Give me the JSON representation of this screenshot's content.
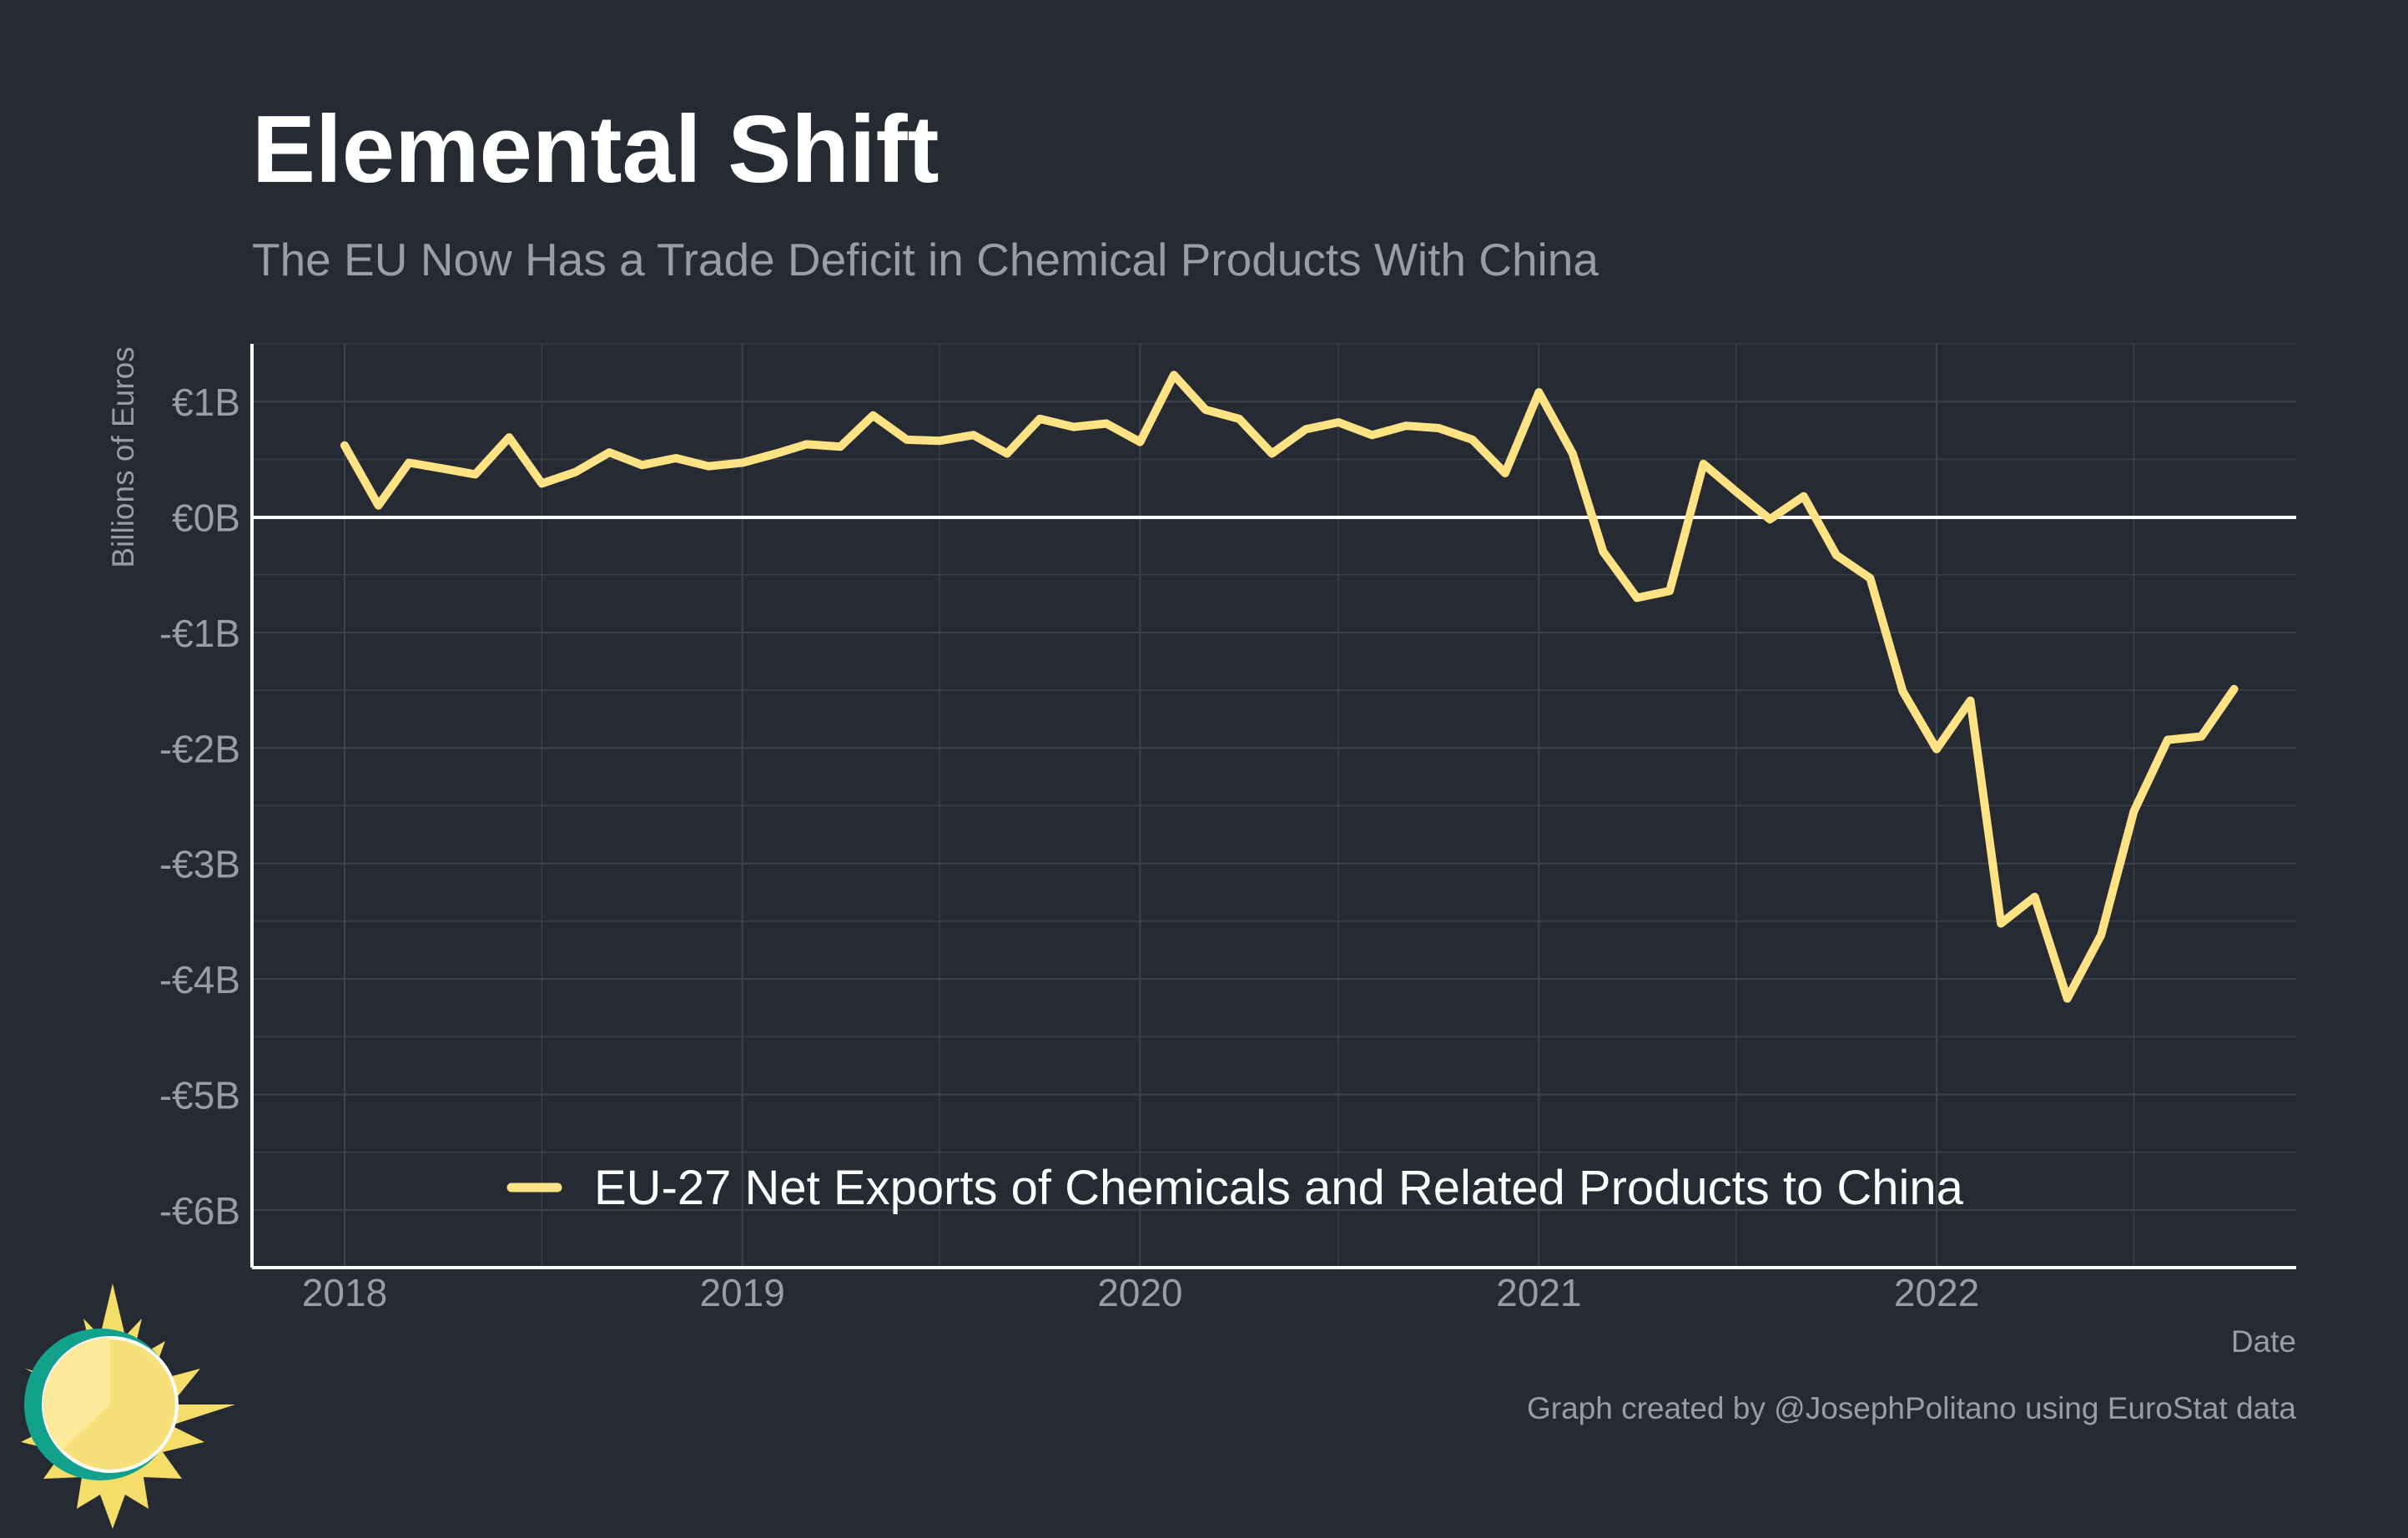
{
  "colors": {
    "background": "#252a33",
    "title": "#ffffff",
    "muted_text": "#9a9da3",
    "grid": "#3e434c",
    "axis": "#ffffff",
    "line": "#ffe283"
  },
  "chart_data": {
    "type": "line",
    "title": "Elemental Shift",
    "subtitle": "The EU Now Has a Trade Deficit in Chemical Products With China",
    "xlabel": "Date",
    "ylabel": "Billions of Euros",
    "ylim": [
      -6.5,
      1.5
    ],
    "xlim": [
      "2017-10-08",
      "2022-11-27"
    ],
    "x_ticks": [
      "2018",
      "2019",
      "2020",
      "2021",
      "2022"
    ],
    "y_ticks": [
      {
        "value": 1,
        "label": "€1B"
      },
      {
        "value": 0,
        "label": "€0B"
      },
      {
        "value": -1,
        "label": "-€1B"
      },
      {
        "value": -2,
        "label": "-€2B"
      },
      {
        "value": -3,
        "label": "-€3B"
      },
      {
        "value": -4,
        "label": "-€4B"
      },
      {
        "value": -5,
        "label": "-€5B"
      },
      {
        "value": -6,
        "label": "-€6B"
      }
    ],
    "grid": true,
    "zero_line": true,
    "legend_position": "bottom-center",
    "series": [
      {
        "name": "EU-27 Net Exports of Chemicals and Related Products to China",
        "color": "#ffe283",
        "points": [
          {
            "x": "2018-01",
            "y": 0.62
          },
          {
            "x": "2018-02",
            "y": 0.1
          },
          {
            "x": "2018-03",
            "y": 0.47
          },
          {
            "x": "2018-04",
            "y": 0.42
          },
          {
            "x": "2018-05",
            "y": 0.37
          },
          {
            "x": "2018-06",
            "y": 0.69
          },
          {
            "x": "2018-07",
            "y": 0.29
          },
          {
            "x": "2018-08",
            "y": 0.39
          },
          {
            "x": "2018-09",
            "y": 0.56
          },
          {
            "x": "2018-10",
            "y": 0.45
          },
          {
            "x": "2018-11",
            "y": 0.51
          },
          {
            "x": "2018-12",
            "y": 0.44
          },
          {
            "x": "2019-01",
            "y": 0.47
          },
          {
            "x": "2019-02",
            "y": 0.55
          },
          {
            "x": "2019-03",
            "y": 0.63
          },
          {
            "x": "2019-04",
            "y": 0.61
          },
          {
            "x": "2019-05",
            "y": 0.88
          },
          {
            "x": "2019-06",
            "y": 0.67
          },
          {
            "x": "2019-07",
            "y": 0.66
          },
          {
            "x": "2019-08",
            "y": 0.71
          },
          {
            "x": "2019-09",
            "y": 0.55
          },
          {
            "x": "2019-10",
            "y": 0.85
          },
          {
            "x": "2019-11",
            "y": 0.78
          },
          {
            "x": "2019-12",
            "y": 0.81
          },
          {
            "x": "2020-01",
            "y": 0.65
          },
          {
            "x": "2020-02",
            "y": 1.23
          },
          {
            "x": "2020-03",
            "y": 0.93
          },
          {
            "x": "2020-04",
            "y": 0.85
          },
          {
            "x": "2020-05",
            "y": 0.55
          },
          {
            "x": "2020-06",
            "y": 0.76
          },
          {
            "x": "2020-07",
            "y": 0.82
          },
          {
            "x": "2020-08",
            "y": 0.71
          },
          {
            "x": "2020-09",
            "y": 0.79
          },
          {
            "x": "2020-10",
            "y": 0.77
          },
          {
            "x": "2020-11",
            "y": 0.67
          },
          {
            "x": "2020-12",
            "y": 0.38
          },
          {
            "x": "2021-01",
            "y": 1.08
          },
          {
            "x": "2021-02",
            "y": 0.55
          },
          {
            "x": "2021-03",
            "y": -0.3
          },
          {
            "x": "2021-04",
            "y": -0.7
          },
          {
            "x": "2021-05",
            "y": -0.64
          },
          {
            "x": "2021-06",
            "y": 0.46
          },
          {
            "x": "2021-07",
            "y": 0.22
          },
          {
            "x": "2021-08",
            "y": -0.02
          },
          {
            "x": "2021-09",
            "y": 0.18
          },
          {
            "x": "2021-10",
            "y": -0.33
          },
          {
            "x": "2021-11",
            "y": -0.53
          },
          {
            "x": "2021-12",
            "y": -1.51
          },
          {
            "x": "2022-01",
            "y": -2.01
          },
          {
            "x": "2022-02",
            "y": -1.59
          },
          {
            "x": "2022-03",
            "y": -3.52
          },
          {
            "x": "2022-04",
            "y": -3.29
          },
          {
            "x": "2022-05",
            "y": -4.17
          },
          {
            "x": "2022-06",
            "y": -3.62
          },
          {
            "x": "2022-07",
            "y": -2.55
          },
          {
            "x": "2022-08",
            "y": -1.93
          },
          {
            "x": "2022-09",
            "y": -1.9
          },
          {
            "x": "2022-10",
            "y": -1.49
          }
        ]
      }
    ]
  },
  "caption": "Graph created by @JosephPolitano using EuroStat data",
  "logo": {
    "name": "sun-logo"
  }
}
